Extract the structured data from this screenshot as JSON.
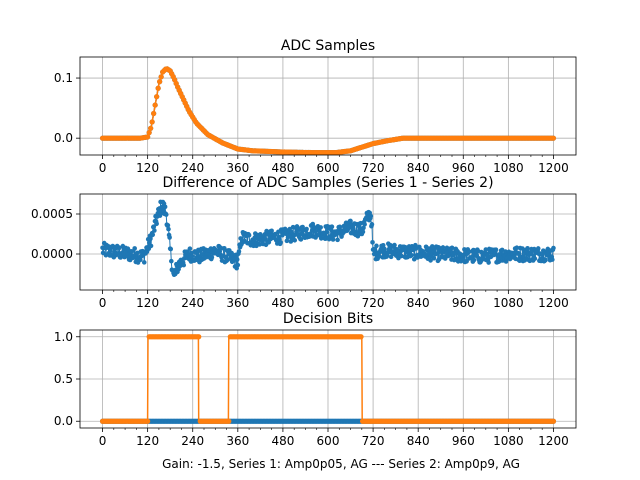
{
  "figure": {
    "xlabel": "Gain: -1.5, Series 1: Amp0p05, AG --- Series 2: Amp0p9, AG"
  },
  "colors": {
    "series1": "#1f77b4",
    "series2": "#ff7f0e",
    "grid": "#b0b0b0",
    "axis": "#000000"
  },
  "chart_data": [
    {
      "type": "line",
      "title": "ADC Samples",
      "xlim": [
        -60,
        1260
      ],
      "ylim": [
        -0.028,
        0.135
      ],
      "xticks": [
        0,
        120,
        240,
        360,
        480,
        600,
        720,
        840,
        960,
        1080,
        1200
      ],
      "xtick_labels": [
        "0",
        "120",
        "240",
        "360",
        "480",
        "600",
        "720",
        "840",
        "960",
        "1080",
        "1200"
      ],
      "yticks": [
        0.0,
        0.1
      ],
      "ytick_labels": [
        "0.0",
        "0.1"
      ],
      "grid": true,
      "legend": "none",
      "series": [
        {
          "name": "Series 1",
          "color": "#1f77b4",
          "x": [
            0,
            100,
            120,
            130,
            140,
            150,
            160,
            170,
            180,
            190,
            200,
            215,
            230,
            250,
            280,
            320,
            360,
            400,
            480,
            560,
            620,
            660,
            690,
            720,
            760,
            800,
            900,
            1000,
            1100,
            1200
          ],
          "y": [
            0,
            0,
            0.002,
            0.02,
            0.055,
            0.09,
            0.11,
            0.116,
            0.112,
            0.1,
            0.085,
            0.065,
            0.045,
            0.025,
            0.006,
            -0.008,
            -0.018,
            -0.021,
            -0.023,
            -0.024,
            -0.024,
            -0.021,
            -0.015,
            -0.009,
            -0.004,
            0,
            0,
            0,
            0,
            0
          ]
        },
        {
          "name": "Series 2",
          "color": "#ff7f0e",
          "x": [
            0,
            100,
            120,
            130,
            140,
            150,
            160,
            170,
            180,
            190,
            200,
            215,
            230,
            250,
            280,
            320,
            360,
            400,
            480,
            560,
            620,
            660,
            690,
            720,
            760,
            800,
            900,
            1000,
            1100,
            1200
          ],
          "y": [
            0,
            0,
            0.002,
            0.02,
            0.055,
            0.09,
            0.11,
            0.116,
            0.112,
            0.1,
            0.085,
            0.065,
            0.045,
            0.025,
            0.006,
            -0.008,
            -0.018,
            -0.021,
            -0.023,
            -0.024,
            -0.024,
            -0.021,
            -0.015,
            -0.009,
            -0.004,
            0,
            0,
            0,
            0,
            0
          ]
        }
      ]
    },
    {
      "type": "scatter",
      "title": "Difference of ADC Samples (Series 1 - Series 2)",
      "xlim": [
        -60,
        1260
      ],
      "ylim": [
        -0.00045,
        0.00075
      ],
      "xticks": [
        0,
        120,
        240,
        360,
        480,
        600,
        720,
        840,
        960,
        1080,
        1200
      ],
      "xtick_labels": [
        "0",
        "120",
        "240",
        "360",
        "480",
        "600",
        "720",
        "840",
        "960",
        "1080",
        "1200"
      ],
      "yticks": [
        0.0,
        0.0005
      ],
      "ytick_labels": [
        "0.0000",
        "0.0005"
      ],
      "grid": true,
      "legend": "none",
      "series": [
        {
          "name": "Series 1 - Series 2",
          "color": "#1f77b4",
          "x": [
            0,
            60,
            110,
            130,
            145,
            155,
            160,
            170,
            180,
            190,
            200,
            230,
            260,
            300,
            340,
            360,
            370,
            400,
            480,
            560,
            620,
            660,
            690,
            700,
            710,
            715,
            720,
            740,
            800,
            900,
            1000,
            1100,
            1200
          ],
          "y": [
            5e-05,
            1e-05,
            -3e-05,
            0.0002,
            0.00045,
            0.00058,
            0.0006,
            0.0005,
            5e-05,
            -0.0003,
            -0.00015,
            0.0,
            -3e-05,
            4e-05,
            -5e-05,
            -0.0001,
            0.0002,
            0.00018,
            0.00022,
            0.0003,
            0.00025,
            0.00033,
            0.0003,
            0.0004,
            0.0005,
            0.00048,
            0.0,
            5e-05,
            3e-05,
            0.0,
            -3e-05,
            0.0,
            0.0
          ]
        }
      ]
    },
    {
      "type": "line",
      "title": "Decision Bits",
      "xlim": [
        -60,
        1260
      ],
      "ylim": [
        -0.08,
        1.08
      ],
      "xticks": [
        0,
        120,
        240,
        360,
        480,
        600,
        720,
        840,
        960,
        1080,
        1200
      ],
      "xtick_labels": [
        "0",
        "120",
        "240",
        "360",
        "480",
        "600",
        "720",
        "840",
        "960",
        "1080",
        "1200"
      ],
      "yticks": [
        0.0,
        0.5,
        1.0
      ],
      "ytick_labels": [
        "0.0",
        "0.5",
        "1.0"
      ],
      "grid": true,
      "legend": "none",
      "series": [
        {
          "name": "Series 1",
          "color": "#1f77b4",
          "x": [
            0,
            1200
          ],
          "y": [
            0,
            0
          ]
        },
        {
          "name": "Series 2",
          "color": "#ff7f0e",
          "x": [
            0,
            120,
            121,
            255,
            256,
            335,
            336,
            690,
            691,
            1200
          ],
          "y": [
            0,
            0,
            1,
            1,
            0,
            0,
            1,
            1,
            0,
            0
          ]
        }
      ]
    }
  ]
}
